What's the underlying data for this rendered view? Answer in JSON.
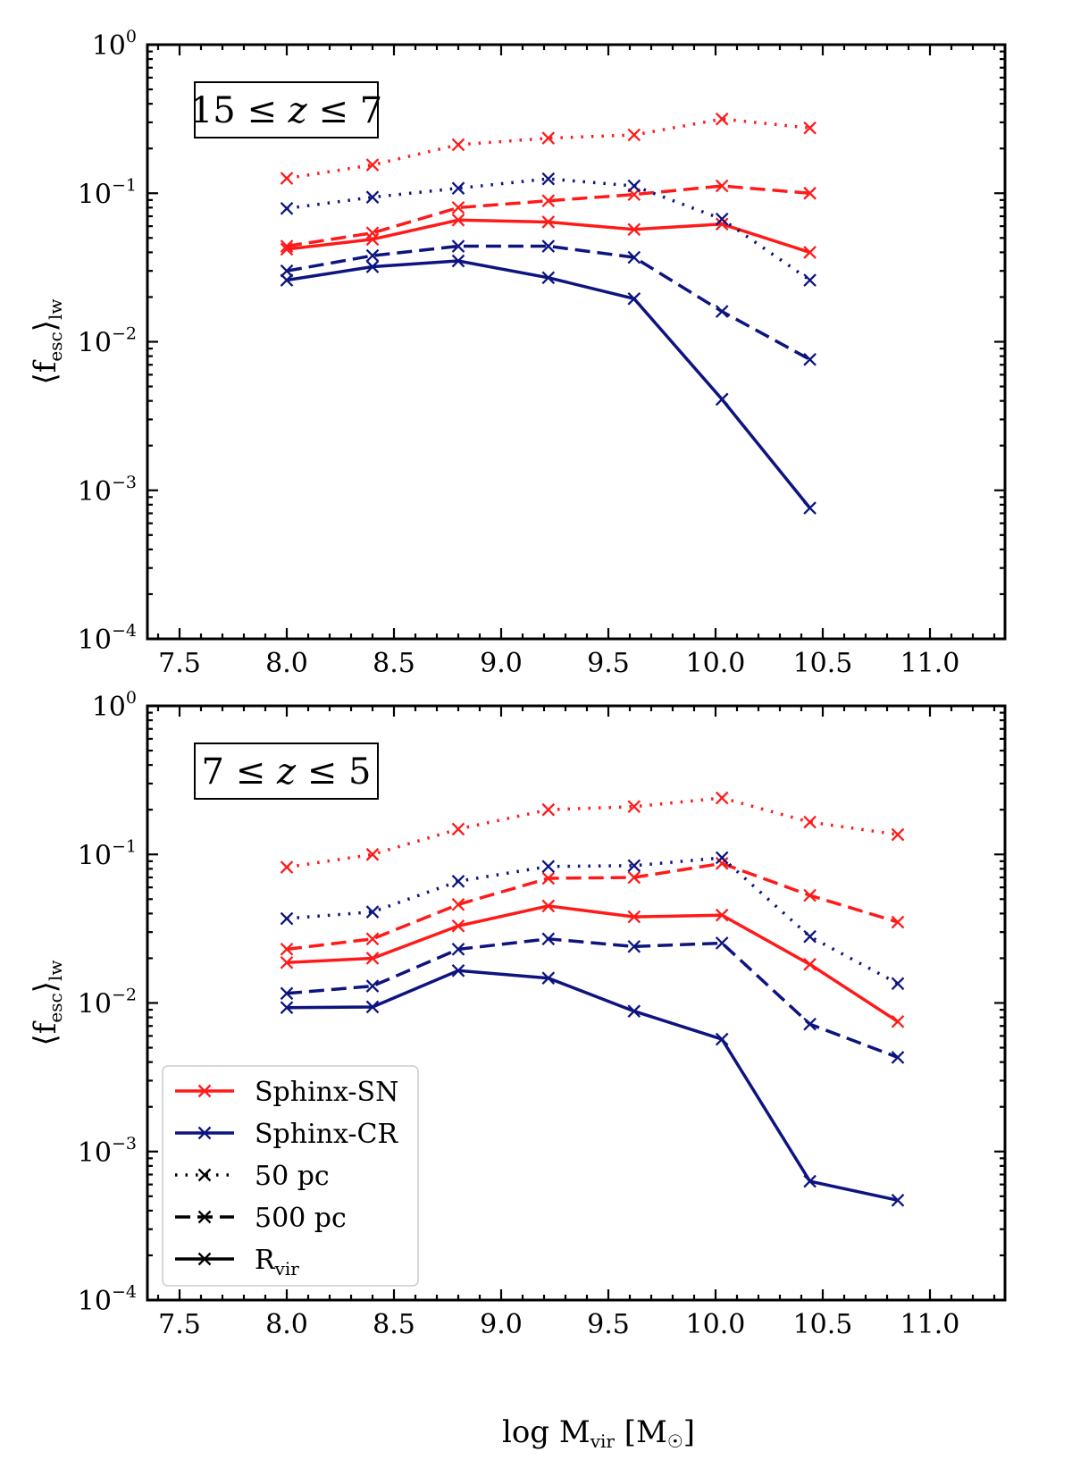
{
  "chart_data": {
    "type": "line",
    "y_scale": "log",
    "xlim": [
      7.35,
      11.35
    ],
    "ylim": [
      0.0001,
      1
    ],
    "xticks": [
      "7.5",
      "8.0",
      "8.5",
      "9.0",
      "9.5",
      "10.0",
      "10.5",
      "11.0"
    ],
    "xlabel": {
      "main": "log M",
      "sub": "vir",
      "unit": " [M",
      "unit_sub": "☉",
      "close": "]"
    },
    "ylabel": {
      "open": "⟨f",
      "sub": "esc",
      "close": "⟩",
      "sub2": "lw"
    },
    "ytick_base": "10",
    "ytick_exponents": [
      "−4",
      "−3",
      "−2",
      "−1",
      "0"
    ],
    "colors": {
      "Sphinx-SN": "#ff1a1a",
      "Sphinx-CR": "#0d1480",
      "neutral": "#000000"
    },
    "panels": [
      {
        "annotation": {
          "pre": "15 ≤ ",
          "var": "z",
          "post": " ≤ 7"
        },
        "series": [
          {
            "sim": "Sphinx-SN",
            "aperture": "50 pc",
            "x": [
              8.0,
              8.4,
              8.8,
              9.22,
              9.62,
              10.03,
              10.44
            ],
            "y": [
              0.126,
              0.155,
              0.212,
              0.235,
              0.247,
              0.316,
              0.275
            ]
          },
          {
            "sim": "Sphinx-SN",
            "aperture": "500 pc",
            "x": [
              8.0,
              8.4,
              8.8,
              9.22,
              9.62,
              10.03,
              10.44
            ],
            "y": [
              0.044,
              0.054,
              0.08,
              0.089,
              0.098,
              0.112,
              0.1
            ]
          },
          {
            "sim": "Sphinx-SN",
            "aperture": "Rvir",
            "x": [
              8.0,
              8.4,
              8.8,
              9.22,
              9.62,
              10.03,
              10.44
            ],
            "y": [
              0.042,
              0.049,
              0.066,
              0.064,
              0.057,
              0.062,
              0.04
            ]
          },
          {
            "sim": "Sphinx-CR",
            "aperture": "50 pc",
            "x": [
              8.0,
              8.4,
              8.8,
              9.22,
              9.62,
              10.03,
              10.44
            ],
            "y": [
              0.079,
              0.094,
              0.108,
              0.125,
              0.112,
              0.067,
              0.026
            ]
          },
          {
            "sim": "Sphinx-CR",
            "aperture": "500 pc",
            "x": [
              8.0,
              8.4,
              8.8,
              9.22,
              9.62,
              10.03,
              10.44
            ],
            "y": [
              0.03,
              0.038,
              0.044,
              0.044,
              0.037,
              0.016,
              0.0076
            ]
          },
          {
            "sim": "Sphinx-CR",
            "aperture": "Rvir",
            "x": [
              8.0,
              8.4,
              8.8,
              9.22,
              9.62,
              10.03,
              10.44
            ],
            "y": [
              0.026,
              0.032,
              0.035,
              0.027,
              0.0195,
              0.0041,
              0.00076
            ]
          }
        ]
      },
      {
        "annotation": {
          "pre": "7 ≤ ",
          "var": "z",
          "post": " ≤ 5"
        },
        "series": [
          {
            "sim": "Sphinx-SN",
            "aperture": "50 pc",
            "x": [
              8.0,
              8.4,
              8.8,
              9.22,
              9.62,
              10.03,
              10.44,
              10.85
            ],
            "y": [
              0.082,
              0.1,
              0.148,
              0.2,
              0.21,
              0.24,
              0.165,
              0.136
            ]
          },
          {
            "sim": "Sphinx-SN",
            "aperture": "500 pc",
            "x": [
              8.0,
              8.4,
              8.8,
              9.22,
              9.62,
              10.03,
              10.44,
              10.85
            ],
            "y": [
              0.023,
              0.027,
              0.046,
              0.069,
              0.07,
              0.087,
              0.053,
              0.035
            ]
          },
          {
            "sim": "Sphinx-SN",
            "aperture": "Rvir",
            "x": [
              8.0,
              8.4,
              8.8,
              9.22,
              9.62,
              10.03,
              10.44,
              10.85
            ],
            "y": [
              0.0187,
              0.02,
              0.033,
              0.045,
              0.038,
              0.039,
              0.0182,
              0.0075
            ]
          },
          {
            "sim": "Sphinx-CR",
            "aperture": "50 pc",
            "x": [
              8.0,
              8.4,
              8.8,
              9.22,
              9.62,
              10.03,
              10.44,
              10.85
            ],
            "y": [
              0.037,
              0.041,
              0.066,
              0.083,
              0.084,
              0.095,
              0.028,
              0.0135
            ]
          },
          {
            "sim": "Sphinx-CR",
            "aperture": "500 pc",
            "x": [
              8.0,
              8.4,
              8.8,
              9.22,
              9.62,
              10.03,
              10.44,
              10.85
            ],
            "y": [
              0.0116,
              0.013,
              0.023,
              0.027,
              0.024,
              0.0253,
              0.0072,
              0.0043
            ]
          },
          {
            "sim": "Sphinx-CR",
            "aperture": "Rvir",
            "x": [
              8.0,
              8.4,
              8.8,
              9.22,
              9.62,
              10.03,
              10.44,
              10.85
            ],
            "y": [
              0.0093,
              0.0094,
              0.0165,
              0.0147,
              0.0088,
              0.0057,
              0.00063,
              0.00047
            ]
          }
        ]
      }
    ],
    "legend": {
      "placement": "lower-left of bottom panel",
      "entries": [
        {
          "label": "Sphinx-SN",
          "kind": "color",
          "key": "Sphinx-SN"
        },
        {
          "label": "Sphinx-CR",
          "kind": "color",
          "key": "Sphinx-CR"
        },
        {
          "label": "50 pc",
          "kind": "style",
          "dash": "dotted"
        },
        {
          "label": "500 pc",
          "kind": "style",
          "dash": "dashed"
        },
        {
          "label": "R",
          "sub": "vir",
          "kind": "style",
          "dash": "solid"
        }
      ]
    }
  }
}
